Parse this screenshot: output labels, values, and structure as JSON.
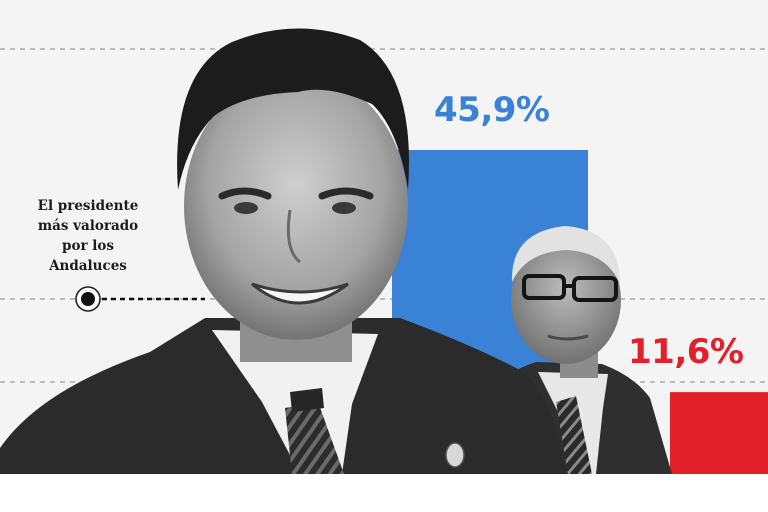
{
  "chart_data": {
    "type": "bar",
    "categories": [
      "",
      ""
    ],
    "values": [
      45.9,
      11.6
    ],
    "value_labels": [
      "45,9%",
      "11,6%"
    ],
    "colors": [
      "#3a82d6",
      "#e2202a"
    ],
    "title": "",
    "xlabel": "",
    "ylabel": "",
    "ylim": [
      0,
      60
    ],
    "grid": true
  },
  "annotation": {
    "lines": [
      "El presidente",
      "más valorado",
      "por los",
      "Andaluces"
    ]
  },
  "photos": [
    {
      "subject": "man-smiling-suit-tie-photo",
      "style": "black-and-white"
    },
    {
      "subject": "older-man-glasses-photo",
      "style": "black-and-white"
    }
  ]
}
